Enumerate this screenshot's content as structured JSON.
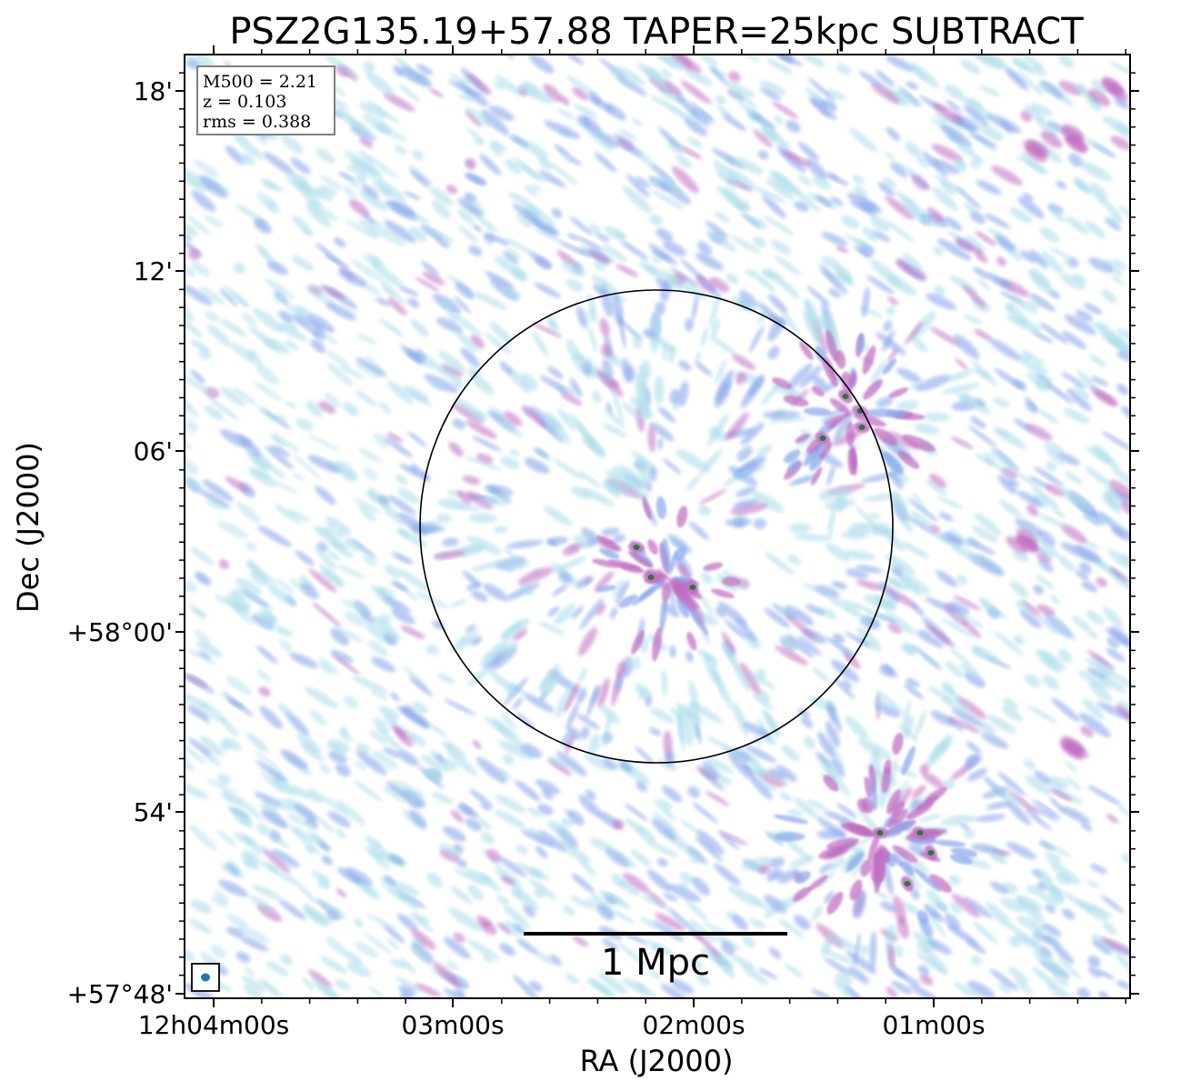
{
  "chart_data": {
    "type": "heatmap",
    "title": "PSZ2G135.19+57.88 TAPER=25kpc SUBTRACT",
    "xlabel": "RA (J2000)",
    "ylabel": "Dec (J2000)",
    "x_ticks": [
      "12h04m00s",
      "03m00s",
      "02m00s",
      "01m00s"
    ],
    "y_ticks": [
      "18'",
      "12'",
      "06'",
      "+58°00'",
      "54'",
      "+57°48'"
    ],
    "info_box": {
      "m500": "M500 = 2.21",
      "z": "z = 0.103",
      "rms": "rms = 0.388"
    },
    "scale_bar_label": "1 Mpc",
    "grid": false,
    "colors": {
      "low": "#a8dce8",
      "mid": "#8aa8ec",
      "high": "#c06cc0",
      "peak": "#1e7a2e",
      "beam": "#1f77b4"
    }
  }
}
